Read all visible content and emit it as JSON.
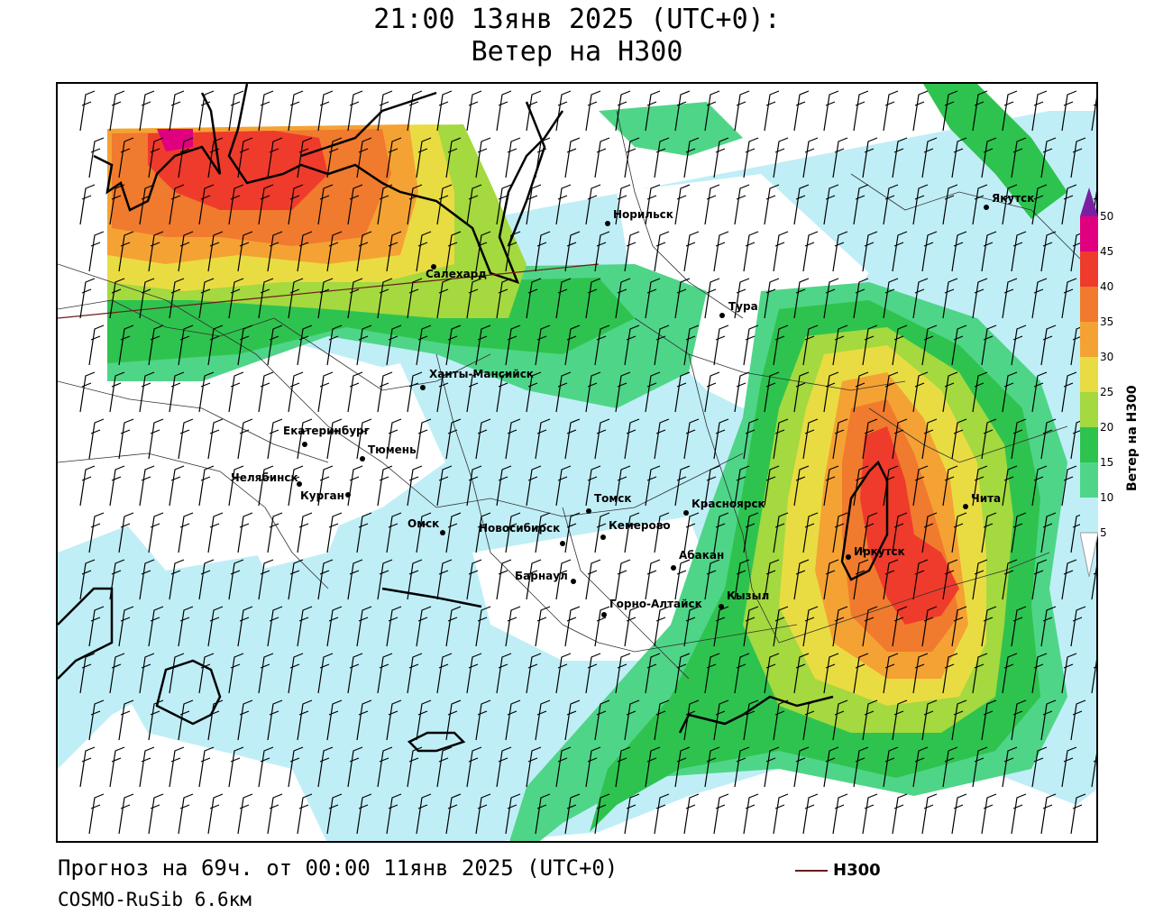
{
  "title": {
    "line1": "21:00 13янв 2025 (UTC+0):",
    "line2": "Ветер на H300"
  },
  "footer": {
    "forecast": "Прогноз на 69ч. от 00:00 11янв 2025 (UTC+0)",
    "model": "COSMO-RuSib 6.6км"
  },
  "legend": {
    "label": "H300",
    "line_color": "#6b1a1a"
  },
  "colorbar": {
    "title": "Ветер на H300",
    "ticks": [
      "50",
      "45",
      "40",
      "35",
      "30",
      "25",
      "20",
      "15",
      "10",
      "5"
    ],
    "colors": [
      "#7b1fa2",
      "#e0007f",
      "#ee3b2b",
      "#f07a2d",
      "#f5a234",
      "#e9dc42",
      "#a4d93f",
      "#2ec34e",
      "#4fd588",
      "#bfeef7",
      "#ffffff"
    ]
  },
  "cities": [
    {
      "name": "Якутск"
    },
    {
      "name": "Норильск"
    },
    {
      "name": "Салехард"
    },
    {
      "name": "Тура"
    },
    {
      "name": "Ханты-Мансийск"
    },
    {
      "name": "Екатеринбург"
    },
    {
      "name": "Тюмень"
    },
    {
      "name": "Челябинск"
    },
    {
      "name": "Курган"
    },
    {
      "name": "Омск"
    },
    {
      "name": "Новосибирск"
    },
    {
      "name": "Томск"
    },
    {
      "name": "Кемерово"
    },
    {
      "name": "Красноярск"
    },
    {
      "name": "Абакан"
    },
    {
      "name": "Барнаул"
    },
    {
      "name": "Горно-Алтайск"
    },
    {
      "name": "Кызыл"
    },
    {
      "name": "Иркутск"
    },
    {
      "name": "Чита"
    }
  ]
}
